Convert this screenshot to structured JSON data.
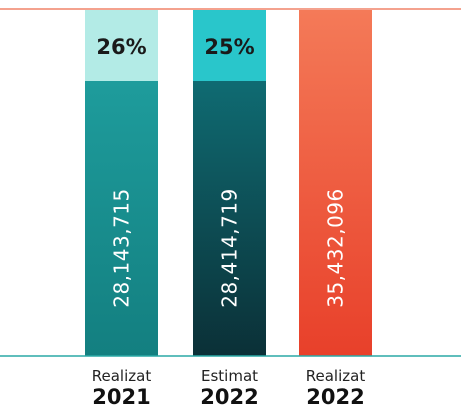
{
  "chart_data": {
    "type": "bar",
    "categories": [
      {
        "label": "Realizat",
        "year": "2021"
      },
      {
        "label": "Estimat",
        "year": "2022"
      },
      {
        "label": "Realizat",
        "year": "2022"
      }
    ],
    "values": [
      28143715,
      28414719,
      35432096
    ],
    "value_labels": [
      "28,143,715",
      "28,414,719",
      "35,432,096"
    ],
    "top_segment_percent_labels": [
      "26%",
      "25%",
      ""
    ],
    "colors": {
      "bar1_top": "#b3ebe6",
      "bar1_main": "#1e9c9c",
      "bar1_main_bottom": "#137f80",
      "bar2_top": "#29c6cb",
      "bar2_main": "#0f6b72",
      "bar2_main_bottom": "#0b3037",
      "bar3_top": "#f47a58",
      "bar3_bottom": "#e8402a",
      "axis_line": "#2aa9a6",
      "top_line": "#ee6a4a"
    },
    "grid": false,
    "legend": "none"
  }
}
